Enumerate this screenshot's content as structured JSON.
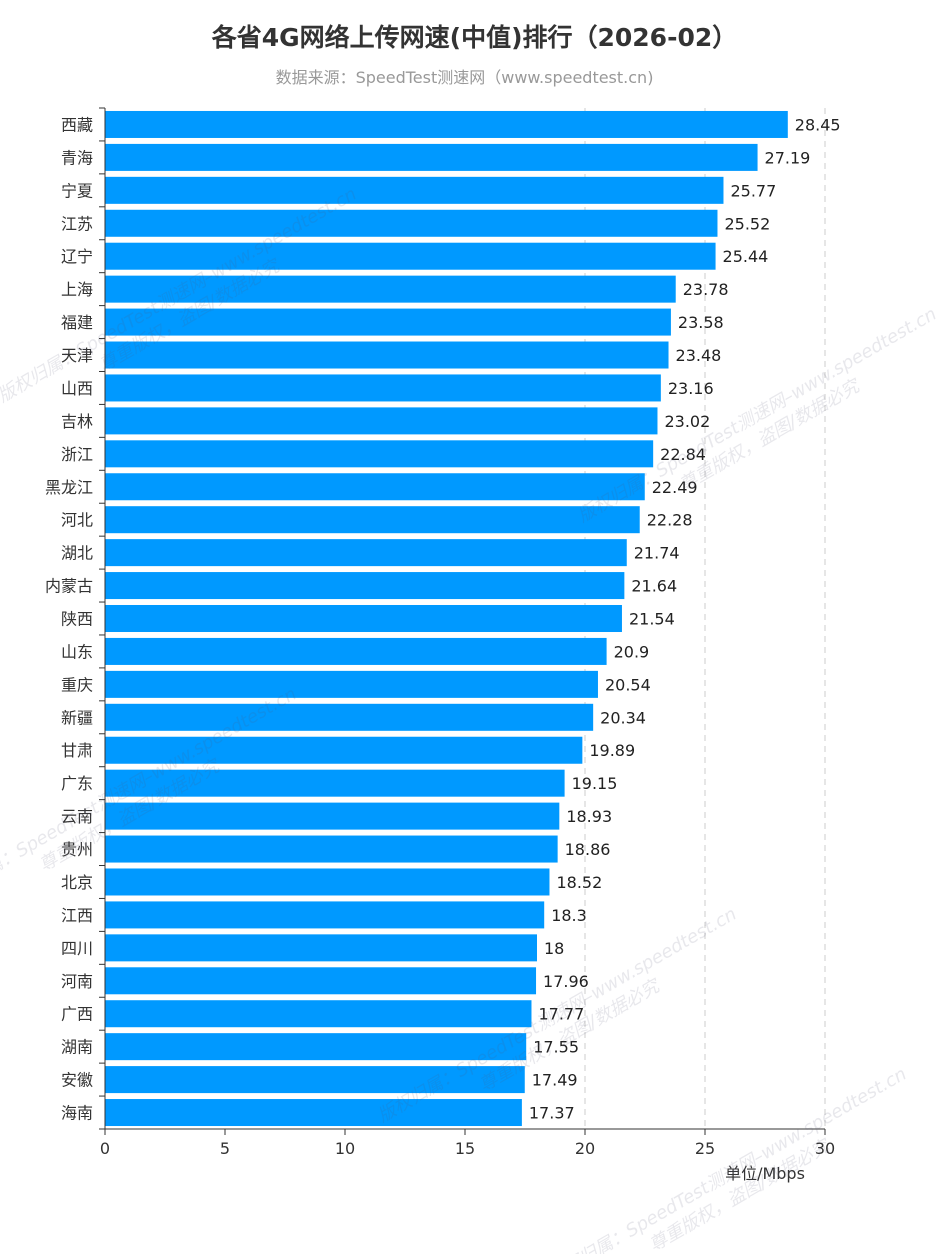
{
  "title": "各省4G网络上传网速(中值)排行（2026-02）",
  "subtitle": "数据来源：SpeedTest测速网（www.speedtest.cn)",
  "chart_data": {
    "type": "bar",
    "orientation": "horizontal",
    "categories": [
      "西藏",
      "青海",
      "宁夏",
      "江苏",
      "辽宁",
      "上海",
      "福建",
      "天津",
      "山西",
      "吉林",
      "浙江",
      "黑龙江",
      "河北",
      "湖北",
      "内蒙古",
      "陕西",
      "山东",
      "重庆",
      "新疆",
      "甘肃",
      "广东",
      "云南",
      "贵州",
      "北京",
      "江西",
      "四川",
      "河南",
      "广西",
      "湖南",
      "安徽",
      "海南"
    ],
    "values": [
      28.45,
      27.19,
      25.77,
      25.52,
      25.44,
      23.78,
      23.58,
      23.48,
      23.16,
      23.02,
      22.84,
      22.49,
      22.28,
      21.74,
      21.64,
      21.54,
      20.9,
      20.54,
      20.34,
      19.89,
      19.15,
      18.93,
      18.86,
      18.52,
      18.3,
      18,
      17.96,
      17.77,
      17.55,
      17.49,
      17.37
    ],
    "value_labels": [
      "28.45",
      "27.19",
      "25.77",
      "25.52",
      "25.44",
      "23.78",
      "23.58",
      "23.48",
      "23.16",
      "23.02",
      "22.84",
      "22.49",
      "22.28",
      "21.74",
      "21.64",
      "21.54",
      "20.9",
      "20.54",
      "20.34",
      "19.89",
      "19.15",
      "18.93",
      "18.86",
      "18.52",
      "18.3",
      "18",
      "17.96",
      "17.77",
      "17.55",
      "17.49",
      "17.37"
    ],
    "xlim": [
      0,
      30
    ],
    "xticks": [
      "0",
      "5",
      "10",
      "15",
      "20",
      "25",
      "30"
    ],
    "xlabel": "单位/Mbps",
    "grid": "vertical dashed lines at 20, 25, 30",
    "bar_color": "#0099ff"
  },
  "watermark": [
    "版权归属：SpeedTest测速网–www.speedtest.cn",
    "尊重版权，盗图/数据必究"
  ]
}
